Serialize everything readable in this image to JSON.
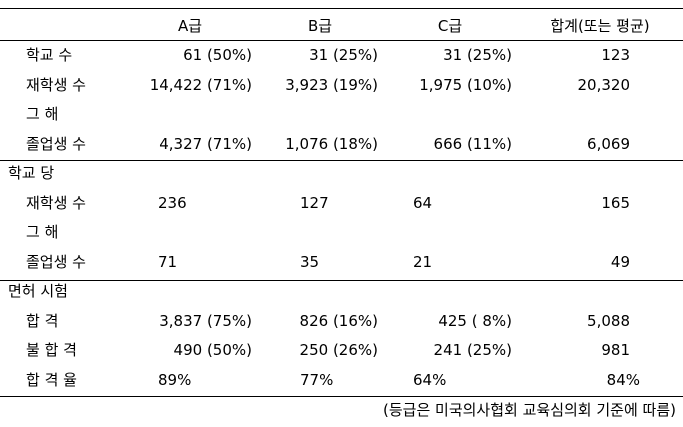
{
  "table": {
    "header": [
      "A급",
      "B급",
      "C급",
      "합계(또는 평균)"
    ],
    "sections": [
      {
        "rows": [
          {
            "label": "학교 수",
            "cells": [
              "61 (50%)",
              "31 (25%)",
              "31 (25%)",
              "123"
            ]
          },
          {
            "label": "재학생 수",
            "cells": [
              "14,422 (71%)",
              "3,923 (19%)",
              "1,975 (10%)",
              "20,320"
            ]
          },
          {
            "label": "그 해"
          },
          {
            "label": "졸업생 수",
            "cells": [
              "4,327 (71%)",
              "1,076 (18%)",
              "666 (11%)",
              "6,069"
            ]
          }
        ]
      },
      {
        "title": "학교 당",
        "rows": [
          {
            "label": "재학생 수",
            "cells": [
              "236",
              "127",
              "64",
              "165"
            ]
          },
          {
            "label": "그 해"
          },
          {
            "label": "졸업생 수",
            "cells": [
              "71",
              "35",
              "21",
              "49"
            ]
          }
        ]
      },
      {
        "title": "면허 시험",
        "rows": [
          {
            "label": "합 격",
            "cells": [
              "3,837 (75%)",
              "826 (16%)",
              "425 ( 8%)",
              "5,088"
            ]
          },
          {
            "label": "불 합 격",
            "cells": [
              "490 (50%)",
              "250 (26%)",
              "241 (25%)",
              "981"
            ]
          },
          {
            "label": "합 격 율",
            "cells": [
              "89%",
              "77%",
              "64%",
              "84%"
            ]
          }
        ]
      }
    ],
    "footnote": "(등급은 미국의사협회 교육심의회 기준에 따름)"
  }
}
